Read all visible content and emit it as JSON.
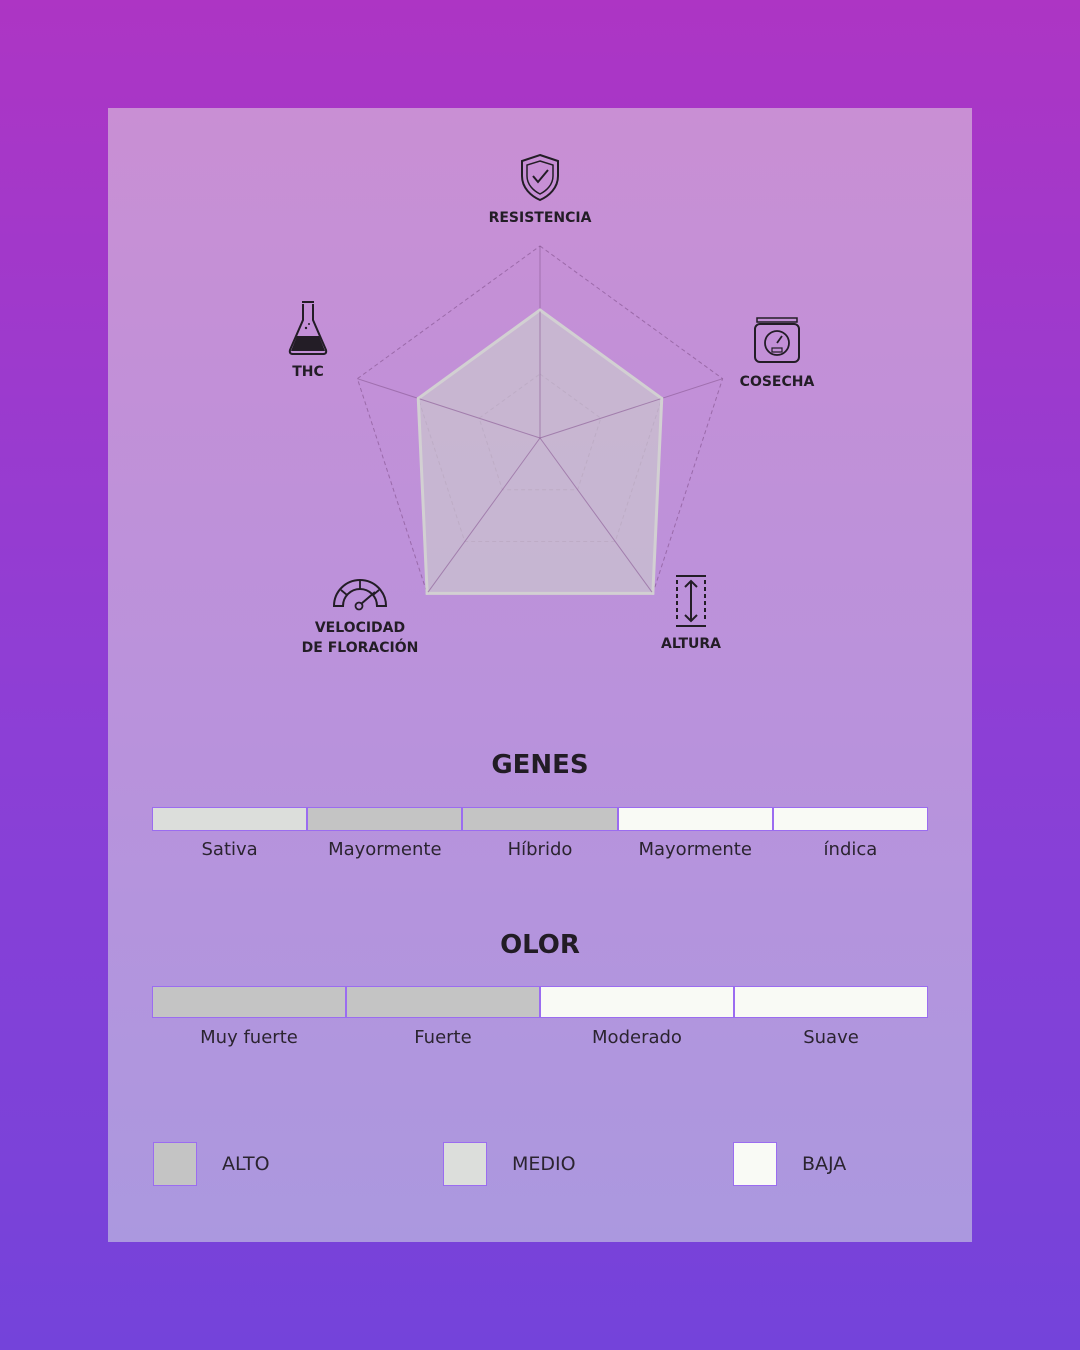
{
  "chart_data": {
    "type": "radar",
    "axes": [
      "RESISTENCIA",
      "COSECHA",
      "ALTURA",
      "VELOCIDAD DE FLORACIÓN",
      "THC"
    ],
    "axis_icons": [
      "shield-check-icon",
      "scale-icon",
      "height-arrow-icon",
      "speedometer-icon",
      "flask-icon"
    ],
    "levels": 3,
    "values": [
      2,
      2,
      3,
      3,
      2
    ],
    "range": [
      0,
      3
    ],
    "grid": true,
    "fill_color": "#c9c3cf",
    "stroke_color": "#d2d0d2"
  },
  "radar_labels": {
    "resistencia": "RESISTENCIA",
    "cosecha": "COSECHA",
    "altura": "ALTURA",
    "velocidad_1": "VELOCIDAD",
    "velocidad_2": "DE FLORACIÓN",
    "thc": "THC"
  },
  "colors": {
    "alto": "#c4c4c4",
    "medio": "#dcdedb",
    "baja": "#f9faf5"
  },
  "genes": {
    "title": "GENES",
    "segments": [
      {
        "label": "Sativa",
        "level": "medio"
      },
      {
        "label": "Mayormente",
        "level": "alto"
      },
      {
        "label": "Híbrido",
        "level": "alto"
      },
      {
        "label": "Mayormente",
        "level": "baja"
      },
      {
        "label": "índica",
        "level": "baja"
      }
    ]
  },
  "olor": {
    "title": "OLOR",
    "segments": [
      {
        "label": "Muy fuerte",
        "level": "alto"
      },
      {
        "label": "Fuerte",
        "level": "alto"
      },
      {
        "label": "Moderado",
        "level": "baja"
      },
      {
        "label": "Suave",
        "level": "baja"
      }
    ]
  },
  "legend": [
    {
      "label": "ALTO",
      "level": "alto"
    },
    {
      "label": "MEDIO",
      "level": "medio"
    },
    {
      "label": "BAJA",
      "level": "baja"
    }
  ]
}
